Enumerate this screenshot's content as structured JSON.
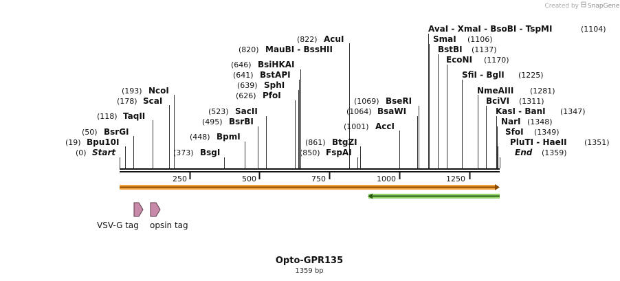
{
  "credit": {
    "prefix": "Created by",
    "brand": "SnapGene"
  },
  "plasmid": {
    "name": "Opto-GPR135",
    "length_label": "1359 bp",
    "length": 1359
  },
  "ruler": {
    "ticks": [
      "250",
      "500",
      "750",
      "1000",
      "1250"
    ]
  },
  "features": {
    "orf_main": {
      "start": 0,
      "end": 1359,
      "color": "#f4a23c",
      "direction": "forward"
    },
    "orf_reverse": {
      "start": 893,
      "end": 1359,
      "color": "#6cb33f",
      "direction": "reverse"
    },
    "tags": [
      {
        "name": "vsvg-tag",
        "label": "VSV-G tag",
        "start": 50,
        "end": 82,
        "color": "#c78aa8"
      },
      {
        "name": "opsin-tag",
        "label": "opsin tag",
        "start": 107,
        "end": 146,
        "color": "#c78aa8"
      }
    ]
  },
  "sites": [
    {
      "name": "Start",
      "pos": "(0)",
      "num": 0,
      "italic": true
    },
    {
      "name": "Bpu10I",
      "pos": "(19)",
      "num": 19
    },
    {
      "name": "BsrGI",
      "pos": "(50)",
      "num": 50
    },
    {
      "name": "TaqII",
      "pos": "(118)",
      "num": 118
    },
    {
      "name": "ScaI",
      "pos": "(178)",
      "num": 178
    },
    {
      "name": "NcoI",
      "pos": "(193)",
      "num": 193
    },
    {
      "name": "BsgI",
      "pos": "(373)",
      "num": 373
    },
    {
      "name": "BpmI",
      "pos": "(448)",
      "num": 448
    },
    {
      "name": "BsrBI",
      "pos": "(495)",
      "num": 495
    },
    {
      "name": "SacII",
      "pos": "(523)",
      "num": 523
    },
    {
      "name": "PfoI",
      "pos": "(626)",
      "num": 626
    },
    {
      "name": "SphI",
      "pos": "(639)",
      "num": 639
    },
    {
      "name": "BstAPI",
      "pos": "(641)",
      "num": 641
    },
    {
      "name": "BsiHKAI",
      "pos": "(646)",
      "num": 646
    },
    {
      "name": "MauBI - BssHII",
      "pos": "(820)",
      "num": 820
    },
    {
      "name": "AcuI",
      "pos": "(822)",
      "num": 822
    },
    {
      "name": "FspAI",
      "pos": "(850)",
      "num": 850
    },
    {
      "name": "BtgZI",
      "pos": "(861)",
      "num": 861
    },
    {
      "name": "AccI",
      "pos": "(1001)",
      "num": 1001
    },
    {
      "name": "BsaWI",
      "pos": "(1064)",
      "num": 1064
    },
    {
      "name": "BseRI",
      "pos": "(1069)",
      "num": 1069
    },
    {
      "name": "AvaI - XmaI - BsoBI - TspMI",
      "pos": "(1104)",
      "num": 1104
    },
    {
      "name": "SmaI",
      "pos": "(1106)",
      "num": 1106
    },
    {
      "name": "BstBI",
      "pos": "(1137)",
      "num": 1137
    },
    {
      "name": "EcoNI",
      "pos": "(1170)",
      "num": 1170
    },
    {
      "name": "SfiI - BglI",
      "pos": "(1225)",
      "num": 1225
    },
    {
      "name": "NmeAIII",
      "pos": "(1281)",
      "num": 1281
    },
    {
      "name": "BciVI",
      "pos": "(1311)",
      "num": 1311
    },
    {
      "name": "KasI - BanI",
      "pos": "(1347)",
      "num": 1347
    },
    {
      "name": "NarI",
      "pos": "(1348)",
      "num": 1348
    },
    {
      "name": "SfoI",
      "pos": "(1349)",
      "num": 1349
    },
    {
      "name": "PluTI - HaeII",
      "pos": "(1351)",
      "num": 1351
    },
    {
      "name": "End",
      "pos": "(1359)",
      "num": 1359,
      "italic": true
    }
  ]
}
